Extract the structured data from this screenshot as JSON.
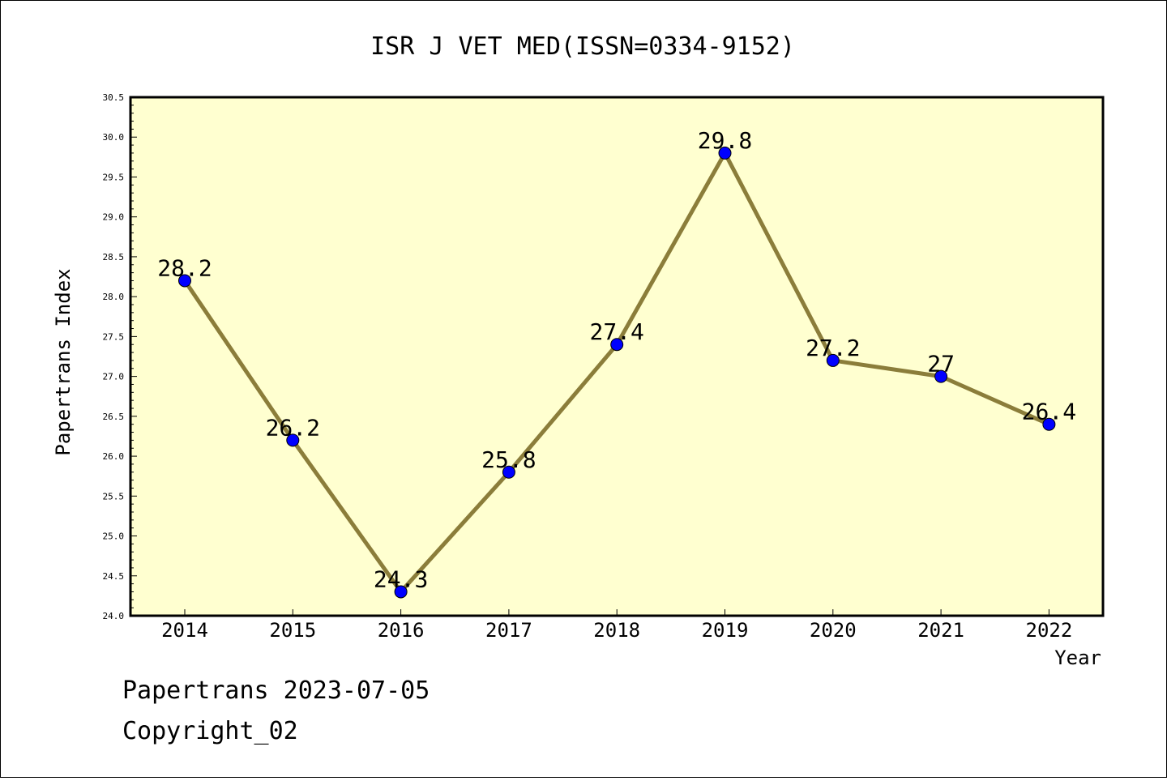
{
  "chart_data": {
    "type": "line",
    "title": "ISR J VET MED(ISSN=0334-9152)",
    "xlabel": "Year",
    "ylabel": "Papertrans Index",
    "categories": [
      "2014",
      "2015",
      "2016",
      "2017",
      "2018",
      "2019",
      "2020",
      "2021",
      "2022"
    ],
    "series": [
      {
        "values": [
          28.2,
          26.2,
          24.3,
          25.8,
          27.4,
          29.8,
          27.2,
          27,
          26.4
        ],
        "labels": [
          "28.2",
          "26.2",
          "24.3",
          "25.8",
          "27.4",
          "29.8",
          "27.2",
          "27",
          "26.4"
        ]
      }
    ],
    "ylim": [
      24.0,
      30.5
    ],
    "yticks": [
      "24.0",
      "24.5",
      "25.0",
      "25.5",
      "26.0",
      "26.5",
      "27.0",
      "27.5",
      "28.0",
      "28.5",
      "29.0",
      "29.5",
      "30.0",
      "30.5"
    ],
    "grid": false,
    "colors": {
      "plot_background": "#ffffd0",
      "line": "#8b7d3a",
      "marker": "#0000ff"
    }
  },
  "footer": {
    "line1": "Papertrans 2023-07-05",
    "line2": "Copyright_02"
  }
}
